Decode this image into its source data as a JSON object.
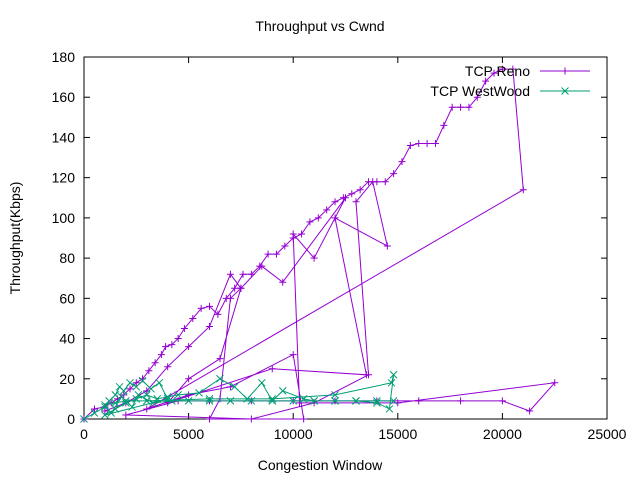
{
  "chart_data": {
    "type": "line",
    "title": "Throughput vs Cwnd",
    "xlabel": "Congestion Window",
    "ylabel": "Throughput(Kbps)",
    "xlim": [
      0,
      25000
    ],
    "ylim": [
      0,
      180
    ],
    "xticks": [
      0,
      5000,
      10000,
      15000,
      20000,
      25000
    ],
    "yticks": [
      0,
      20,
      40,
      60,
      80,
      100,
      120,
      140,
      160,
      180
    ],
    "grid": false,
    "legend_position": "top-right",
    "series": [
      {
        "name": "TCP Reno",
        "color": "#9400d3",
        "marker": "plus",
        "points": [
          [
            0,
            0
          ],
          [
            500,
            5
          ],
          [
            1000,
            6
          ],
          [
            1300,
            8
          ],
          [
            1600,
            10
          ],
          [
            1900,
            12
          ],
          [
            2200,
            15
          ],
          [
            2500,
            18
          ],
          [
            2800,
            20
          ],
          [
            3100,
            24
          ],
          [
            3400,
            28
          ],
          [
            3700,
            32
          ],
          [
            3900,
            36
          ],
          [
            4200,
            37
          ],
          [
            4500,
            40
          ],
          [
            4800,
            45
          ],
          [
            5200,
            50
          ],
          [
            5600,
            55
          ],
          [
            6000,
            56
          ],
          [
            6400,
            52
          ],
          [
            6800,
            60
          ],
          [
            7200,
            65
          ],
          [
            7600,
            72
          ],
          [
            8000,
            72
          ],
          [
            8400,
            76
          ],
          [
            8800,
            82
          ],
          [
            9200,
            82
          ],
          [
            9600,
            86
          ],
          [
            10000,
            90
          ],
          [
            10400,
            92
          ],
          [
            10800,
            98
          ],
          [
            11200,
            100
          ],
          [
            11600,
            104
          ],
          [
            12000,
            108
          ],
          [
            12400,
            110
          ],
          [
            12800,
            112
          ],
          [
            13200,
            114
          ],
          [
            13600,
            118
          ],
          [
            14000,
            118
          ],
          [
            14400,
            118
          ],
          [
            14800,
            122
          ],
          [
            15200,
            128
          ],
          [
            15600,
            136
          ],
          [
            16000,
            137
          ],
          [
            16400,
            137
          ],
          [
            16800,
            137
          ],
          [
            17200,
            146
          ],
          [
            17600,
            155
          ],
          [
            18000,
            155
          ],
          [
            18400,
            155
          ],
          [
            18800,
            160
          ],
          [
            19200,
            168
          ],
          [
            19600,
            172
          ],
          [
            20000,
            174
          ],
          [
            20500,
            174
          ],
          [
            21000,
            114
          ],
          [
            3000,
            5
          ],
          [
            5000,
            12
          ],
          [
            7000,
            16
          ],
          [
            10000,
            32
          ],
          [
            10500,
            0
          ],
          [
            6000,
            0
          ],
          [
            6500,
            10
          ],
          [
            7000,
            60
          ],
          [
            7500,
            65
          ],
          [
            6500,
            30
          ],
          [
            5000,
            20
          ],
          [
            4000,
            8
          ],
          [
            9000,
            25
          ],
          [
            13500,
            22
          ],
          [
            12000,
            100
          ],
          [
            14500,
            86
          ],
          [
            13800,
            118
          ],
          [
            13000,
            108
          ],
          [
            13600,
            22
          ],
          [
            11000,
            8
          ],
          [
            8000,
            0
          ],
          [
            2000,
            2
          ],
          [
            4500,
            9
          ],
          [
            6000,
            9
          ],
          [
            8000,
            9
          ],
          [
            10000,
            9
          ],
          [
            12000,
            9
          ],
          [
            14000,
            9
          ],
          [
            16000,
            9
          ],
          [
            18000,
            9
          ],
          [
            20000,
            9
          ],
          [
            21300,
            4
          ],
          [
            22500,
            18
          ],
          [
            15000,
            8
          ],
          [
            10300,
            8
          ],
          [
            10000,
            92
          ],
          [
            11000,
            80
          ],
          [
            12500,
            110
          ],
          [
            9500,
            68
          ],
          [
            8500,
            76
          ],
          [
            7500,
            65
          ],
          [
            7000,
            72
          ],
          [
            6000,
            46
          ],
          [
            5000,
            36
          ],
          [
            4000,
            26
          ],
          [
            3000,
            14
          ],
          [
            2000,
            8
          ],
          [
            1000,
            4
          ]
        ]
      },
      {
        "name": "TCP WestWood",
        "color": "#009e73",
        "marker": "x",
        "points": [
          [
            0,
            0
          ],
          [
            500,
            3
          ],
          [
            1000,
            6
          ],
          [
            1200,
            9
          ],
          [
            1500,
            12
          ],
          [
            1700,
            16
          ],
          [
            1900,
            14
          ],
          [
            2200,
            18
          ],
          [
            2500,
            16
          ],
          [
            2800,
            19
          ],
          [
            3200,
            15
          ],
          [
            3600,
            18
          ],
          [
            4000,
            10
          ],
          [
            1000,
            2
          ],
          [
            1500,
            5
          ],
          [
            2000,
            8
          ],
          [
            2500,
            10
          ],
          [
            3000,
            12
          ],
          [
            3500,
            10
          ],
          [
            4000,
            11
          ],
          [
            4500,
            12
          ],
          [
            5500,
            13
          ],
          [
            6500,
            20
          ],
          [
            7200,
            16
          ],
          [
            7800,
            10
          ],
          [
            8500,
            18
          ],
          [
            9000,
            9
          ],
          [
            9500,
            14
          ],
          [
            10500,
            10
          ],
          [
            11000,
            9
          ],
          [
            12000,
            9
          ],
          [
            13000,
            9
          ],
          [
            14000,
            8
          ],
          [
            14600,
            5
          ],
          [
            14800,
            22
          ],
          [
            14700,
            18
          ],
          [
            12000,
            12
          ],
          [
            9000,
            10
          ],
          [
            6000,
            10
          ],
          [
            3000,
            9
          ],
          [
            2000,
            9
          ],
          [
            1500,
            8
          ],
          [
            1000,
            7
          ],
          [
            1300,
            3
          ],
          [
            1800,
            11
          ],
          [
            2300,
            6
          ],
          [
            2600,
            12
          ],
          [
            3300,
            8
          ],
          [
            4200,
            9
          ],
          [
            5000,
            9
          ],
          [
            6000,
            9
          ],
          [
            7000,
            9
          ],
          [
            8000,
            9
          ],
          [
            9000,
            9
          ],
          [
            10000,
            9
          ],
          [
            11000,
            9
          ],
          [
            12000,
            9
          ],
          [
            13000,
            9
          ],
          [
            14000,
            9
          ],
          [
            14800,
            9
          ]
        ]
      }
    ]
  }
}
